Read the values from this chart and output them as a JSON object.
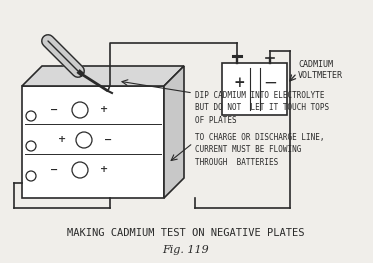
{
  "bg_color": "#f0eeea",
  "line_color": "#2a2a2a",
  "title": "MAKING CADMIUM TEST ON NEGATIVE PLATES",
  "fig_label": "Fig. 119",
  "label_voltmeter": "CADMIUM\nVOLTMETER",
  "label_dip": "DIP CADMIUM INTO ELECTROLYTE\nBUT DO NOT  LET IT TOUCH TOPS\nOF PLATES",
  "label_charge": "TO CHARGE OR DISCHARGE LINE,\nCURRENT MUST BE FLOWING\nTHROUGH  BATTERIES",
  "figsize": [
    3.73,
    2.63
  ],
  "dpi": 100
}
